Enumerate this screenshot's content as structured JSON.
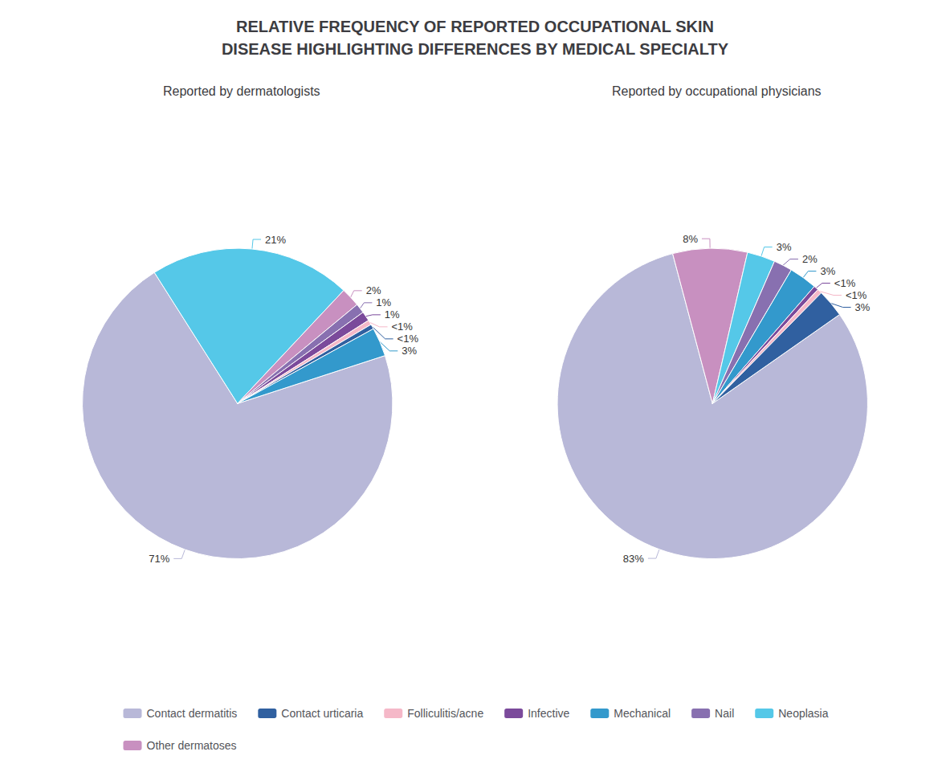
{
  "title": "RELATIVE FREQUENCY OF REPORTED OCCUPATIONAL SKIN\nDISEASE HIGHLIGHTING DIFFERENCES BY MEDICAL SPECIALTY",
  "chart_data": [
    {
      "type": "pie",
      "subtitle": "Reported by dermatologists",
      "categories": [
        "Contact dermatitis",
        "Neoplasia",
        "Other dermatoses",
        "Nail",
        "Infective",
        "Folliculitis/acne",
        "Contact urticaria",
        "Mechanical"
      ],
      "values": [
        71,
        21,
        2,
        1,
        1,
        0.5,
        0.5,
        3
      ],
      "value_labels": [
        "71%",
        "21%",
        "2%",
        "1%",
        "1%",
        "<1%",
        "<1%",
        "3%"
      ],
      "colors": [
        "#B8B8D8",
        "#55C8E8",
        "#C890C0",
        "#8870B0",
        "#7B4A9B",
        "#F5B8C8",
        "#3060A0",
        "#3399CC"
      ],
      "data_labels": true,
      "legend": "bottom"
    },
    {
      "type": "pie",
      "subtitle": "Reported by occupational physicians",
      "categories": [
        "Contact dermatitis",
        "Other dermatoses",
        "Neoplasia",
        "Nail",
        "Mechanical",
        "Infective",
        "Folliculitis/acne",
        "Contact urticaria"
      ],
      "values": [
        83,
        8,
        3,
        2,
        3,
        0.5,
        0.5,
        3
      ],
      "value_labels": [
        "83%",
        "8%",
        "3%",
        "2%",
        "3%",
        "<1%",
        "<1%",
        "3%"
      ],
      "colors": [
        "#B8B8D8",
        "#C890C0",
        "#55C8E8",
        "#8870B0",
        "#3399CC",
        "#7B4A9B",
        "#F5B8C8",
        "#3060A0"
      ],
      "data_labels": true,
      "legend": "bottom"
    }
  ]
}
